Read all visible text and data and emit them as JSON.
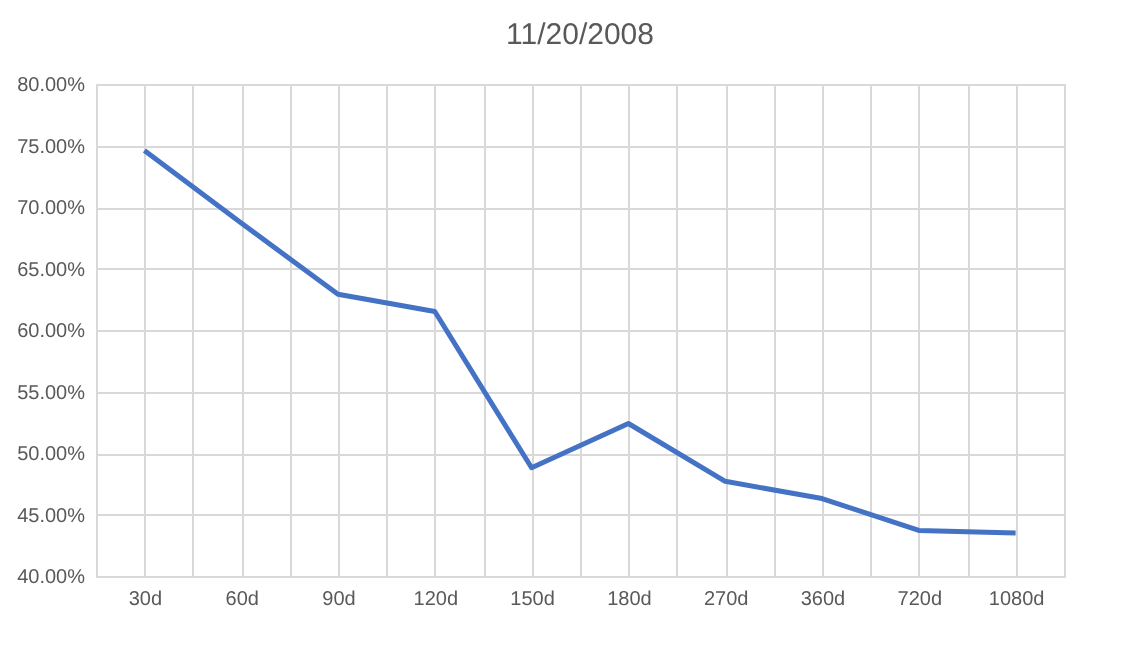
{
  "chart_data": {
    "type": "line",
    "title": "11/20/2008",
    "categories": [
      "30d",
      "60d",
      "90d",
      "120d",
      "150d",
      "180d",
      "270d",
      "360d",
      "720d",
      "1080d"
    ],
    "series": [
      {
        "color": "#4472c4",
        "values": [
          74.6,
          68.7,
          62.9,
          61.5,
          48.8,
          52.4,
          47.7,
          46.3,
          43.7,
          43.5
        ]
      }
    ],
    "ylim": [
      40,
      80
    ],
    "yticks": [
      {
        "value": 40,
        "label": "40.00%"
      },
      {
        "value": 45,
        "label": "45.00%"
      },
      {
        "value": 50,
        "label": "50.00%"
      },
      {
        "value": 55,
        "label": "55.00%"
      },
      {
        "value": 60,
        "label": "60.00%"
      },
      {
        "value": 65,
        "label": "65.00%"
      },
      {
        "value": 70,
        "label": "70.00%"
      },
      {
        "value": 75,
        "label": "75.00%"
      },
      {
        "value": 80,
        "label": "80.00%"
      }
    ],
    "grid": true,
    "marker": "none",
    "line_style": "solid"
  }
}
